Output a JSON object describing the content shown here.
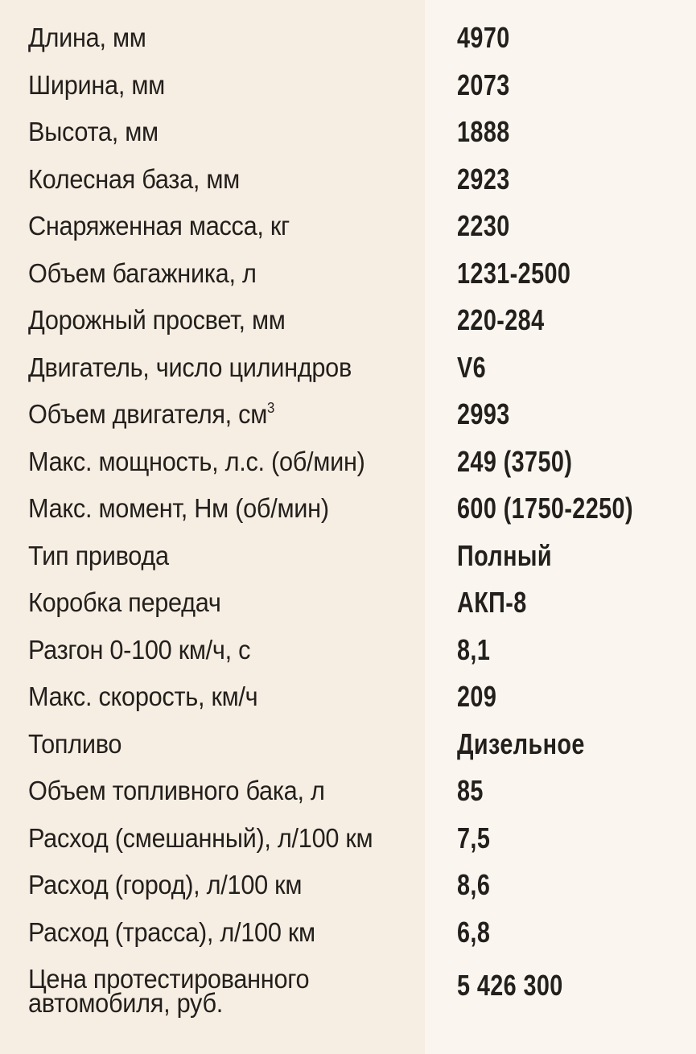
{
  "colors": {
    "left_background": "#f6eee3",
    "right_background": "#faf6ef",
    "text": "#231f1c"
  },
  "specs": [
    {
      "label": "Длина, мм",
      "value": "4970"
    },
    {
      "label": "Ширина, мм",
      "value": "2073"
    },
    {
      "label": "Высота, мм",
      "value": "1888"
    },
    {
      "label": "Колесная база, мм",
      "value": "2923"
    },
    {
      "label": "Снаряженная масса, кг",
      "value": "2230"
    },
    {
      "label": "Объем багажника, л",
      "value": "1231-2500"
    },
    {
      "label": "Дорожный просвет, мм",
      "value": "220-284"
    },
    {
      "label": "Двигатель, число цилиндров",
      "value": "V6"
    },
    {
      "label": "Объем двигателя, см",
      "label_sup": "3",
      "value": "2993"
    },
    {
      "label": "Макс. мощность, л.с. (об/мин)",
      "value": "249 (3750)"
    },
    {
      "label": "Макс. момент, Нм (об/мин)",
      "value": "600 (1750-2250)"
    },
    {
      "label": "Тип привода",
      "value": "Полный"
    },
    {
      "label": "Коробка передач",
      "value": "АКП-8"
    },
    {
      "label": "Разгон 0-100 км/ч, с",
      "value": "8,1"
    },
    {
      "label": "Макс. скорость, км/ч",
      "value": "209"
    },
    {
      "label": "Топливо",
      "value": "Дизельное"
    },
    {
      "label": "Объем топливного бака, л",
      "value": "85"
    },
    {
      "label": "Расход (смешанный), л/100 км",
      "value": "7,5"
    },
    {
      "label": "Расход (город), л/100 км",
      "value": "8,6"
    },
    {
      "label": "Расход (трасса), л/100 км",
      "value": "6,8"
    },
    {
      "label": "Цена протестированного",
      "label_line2": "автомобиля, руб.",
      "value": "5 426 300"
    }
  ]
}
